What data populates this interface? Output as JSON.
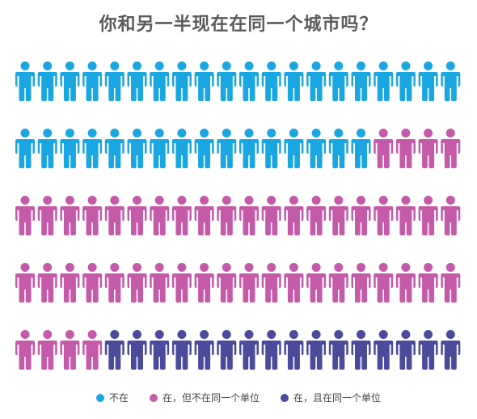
{
  "title": "你和另一半现在在同一个城市吗？",
  "chart_data": {
    "type": "pictogram",
    "title": "你和另一半现在在同一个城市吗？",
    "icon": "person-icon",
    "rows": 5,
    "per_row": 20,
    "total_icons": 100,
    "series": [
      {
        "name": "不在",
        "count": 36,
        "color": "#1aa6e0"
      },
      {
        "name": "在，但不在同一个单位",
        "count": 48,
        "color": "#c45aa8"
      },
      {
        "name": "在，且在同一个单位",
        "count": 16,
        "color": "#4b4a9b"
      }
    ],
    "legend_position": "bottom"
  }
}
